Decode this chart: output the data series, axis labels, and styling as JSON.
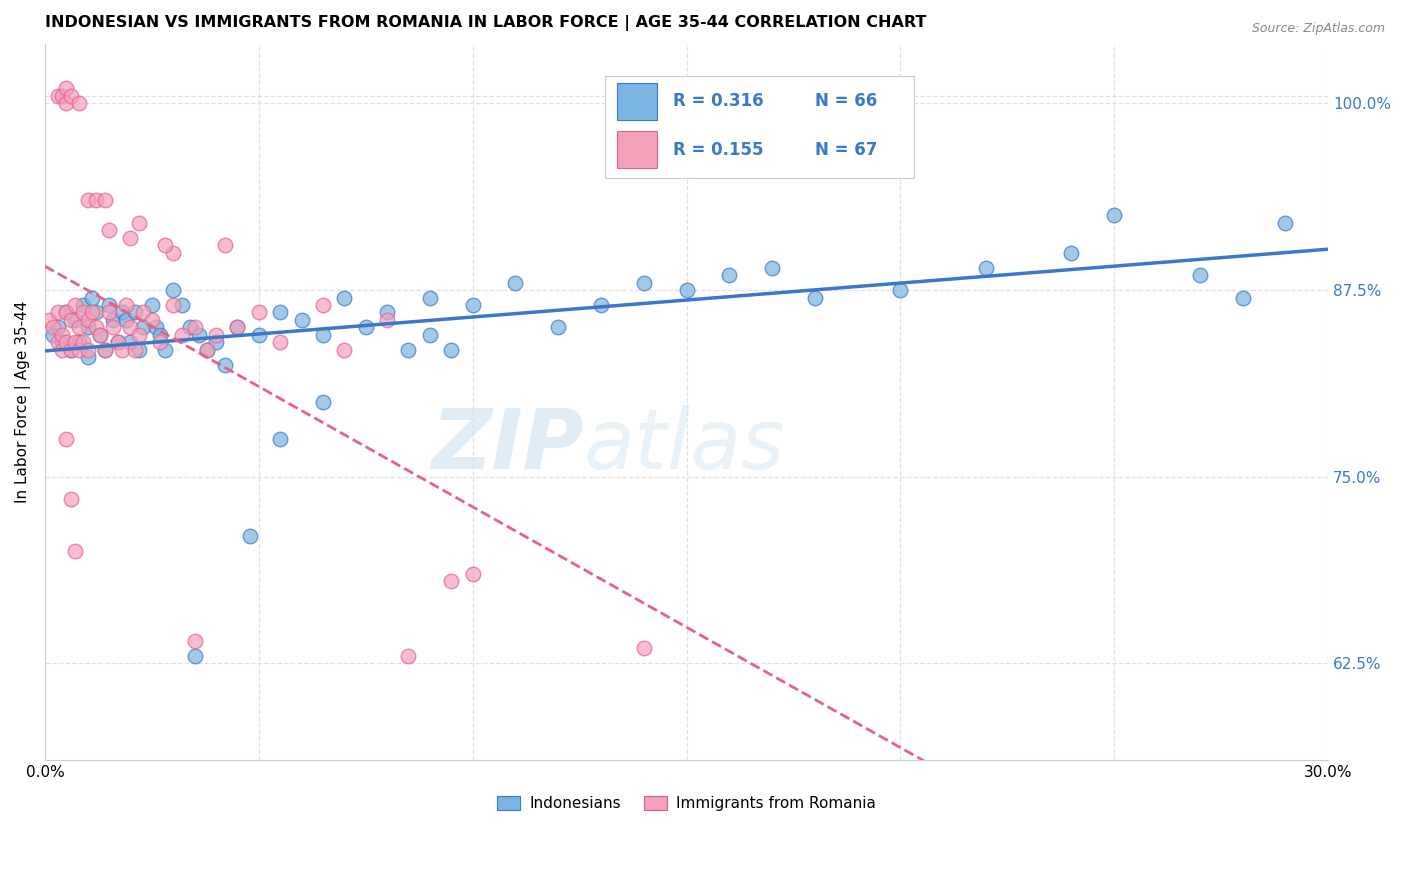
{
  "title": "INDONESIAN VS IMMIGRANTS FROM ROMANIA IN LABOR FORCE | AGE 35-44 CORRELATION CHART",
  "source": "Source: ZipAtlas.com",
  "ylabel": "In Labor Force | Age 35-44",
  "right_yticks": [
    62.5,
    75.0,
    87.5,
    100.0
  ],
  "right_yticklabels": [
    "62.5%",
    "75.0%",
    "87.5%",
    "100.0%"
  ],
  "xmin": 0.0,
  "xmax": 30.0,
  "ymin": 56.0,
  "ymax": 104.0,
  "legend_R1": "R = 0.316",
  "legend_N1": "N = 66",
  "legend_R2": "R = 0.155",
  "legend_N2": "N = 67",
  "legend_label1": "Indonesians",
  "legend_label2": "Immigrants from Romania",
  "color_blue": "#7ab4e0",
  "color_pink": "#f4a0b8",
  "color_blue_line": "#3a78c9",
  "color_pink_line": "#e8608a",
  "color_blue_text": "#3a78c9",
  "color_right_axis": "#3a78c9",
  "blue_scatter_x": [
    0.2,
    0.3,
    0.4,
    0.5,
    0.6,
    0.7,
    0.8,
    0.9,
    1.0,
    1.0,
    1.1,
    1.2,
    1.3,
    1.4,
    1.5,
    1.6,
    1.7,
    1.8,
    1.9,
    2.0,
    2.1,
    2.2,
    2.3,
    2.5,
    2.6,
    2.7,
    2.8,
    3.0,
    3.2,
    3.4,
    3.6,
    3.8,
    4.0,
    4.2,
    4.5,
    5.0,
    5.5,
    6.0,
    6.5,
    7.0,
    7.5,
    8.0,
    8.5,
    9.0,
    10.0,
    11.0,
    12.0,
    13.0,
    14.0,
    15.0,
    16.0,
    17.0,
    18.0,
    20.0,
    22.0,
    24.0,
    25.0,
    27.0,
    28.0,
    29.0,
    5.5,
    9.5,
    3.5,
    4.8,
    6.5,
    9.0
  ],
  "blue_scatter_y": [
    84.5,
    85.0,
    84.0,
    86.0,
    83.5,
    85.5,
    84.0,
    86.5,
    85.0,
    83.0,
    87.0,
    86.0,
    84.5,
    83.5,
    86.5,
    85.5,
    84.0,
    86.0,
    85.5,
    84.0,
    86.0,
    83.5,
    85.0,
    86.5,
    85.0,
    84.5,
    83.5,
    87.5,
    86.5,
    85.0,
    84.5,
    83.5,
    84.0,
    82.5,
    85.0,
    84.5,
    86.0,
    85.5,
    84.5,
    87.0,
    85.0,
    86.0,
    83.5,
    87.0,
    86.5,
    88.0,
    85.0,
    86.5,
    88.0,
    87.5,
    88.5,
    89.0,
    87.0,
    87.5,
    89.0,
    90.0,
    92.5,
    88.5,
    87.0,
    92.0,
    77.5,
    83.5,
    63.0,
    71.0,
    80.0,
    84.5
  ],
  "pink_scatter_x": [
    0.1,
    0.2,
    0.3,
    0.3,
    0.4,
    0.4,
    0.5,
    0.5,
    0.6,
    0.6,
    0.7,
    0.7,
    0.8,
    0.8,
    0.9,
    0.9,
    1.0,
    1.0,
    1.1,
    1.2,
    1.3,
    1.4,
    1.5,
    1.6,
    1.7,
    1.8,
    1.9,
    2.0,
    2.1,
    2.2,
    2.3,
    2.5,
    2.7,
    3.0,
    3.2,
    3.5,
    3.8,
    4.0,
    4.5,
    5.0,
    5.5,
    6.5,
    7.0,
    8.0,
    9.5,
    0.3,
    0.4,
    0.5,
    0.5,
    0.6,
    1.0,
    1.5,
    2.0,
    3.0,
    4.2,
    0.8,
    1.2,
    1.4,
    2.2,
    2.8,
    0.5,
    0.6,
    0.7,
    3.5,
    8.5,
    14.0,
    10.0
  ],
  "pink_scatter_y": [
    85.5,
    85.0,
    84.0,
    86.0,
    84.5,
    83.5,
    86.0,
    84.0,
    85.5,
    83.5,
    84.0,
    86.5,
    83.5,
    85.0,
    86.0,
    84.0,
    85.5,
    83.5,
    86.0,
    85.0,
    84.5,
    83.5,
    86.0,
    85.0,
    84.0,
    83.5,
    86.5,
    85.0,
    83.5,
    84.5,
    86.0,
    85.5,
    84.0,
    86.5,
    84.5,
    85.0,
    83.5,
    84.5,
    85.0,
    86.0,
    84.0,
    86.5,
    83.5,
    85.5,
    68.0,
    100.5,
    100.5,
    100.0,
    101.0,
    100.5,
    93.5,
    91.5,
    91.0,
    90.0,
    90.5,
    100.0,
    93.5,
    93.5,
    92.0,
    90.5,
    77.5,
    73.5,
    70.0,
    64.0,
    63.0,
    63.5,
    68.5
  ],
  "watermark_zip": "ZIP",
  "watermark_atlas": "atlas",
  "background_color": "#ffffff",
  "grid_color": "#e0e0e0"
}
